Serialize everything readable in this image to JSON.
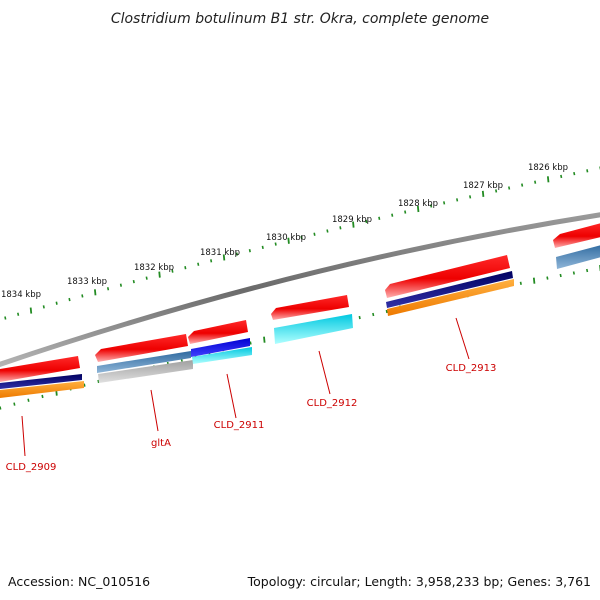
{
  "title": "Clostridium botulinum B1 str. Okra, complete genome",
  "ticks": [
    {
      "label": "1826 kbp"
    },
    {
      "label": "1827 kbp"
    },
    {
      "label": "1828 kbp"
    },
    {
      "label": "1829 kbp"
    },
    {
      "label": "1830 kbp"
    },
    {
      "label": "1831 kbp"
    },
    {
      "label": "1832 kbp"
    },
    {
      "label": "1833 kbp"
    },
    {
      "label": "1834 kbp"
    }
  ],
  "genes": [
    {
      "name": "CLD_2909"
    },
    {
      "name": "gltA"
    },
    {
      "name": "CLD_2911"
    },
    {
      "name": "CLD_2912"
    },
    {
      "name": "CLD_2913"
    }
  ],
  "footer": {
    "accession": "Accession: NC_010516",
    "topology": "Topology: circular; Length: 3,958,233 bp; Genes: 3,761"
  },
  "colors": {
    "backbone": "#808080",
    "cds_red": "#ee0000",
    "navy": "#000080",
    "orange": "#ff8c00",
    "steelblue": "#4682b4",
    "silver": "#b8b8b8",
    "blue": "#0000ff",
    "cyan": "#00e5ff",
    "ticks": "#228b22",
    "label": "#cc0000"
  }
}
